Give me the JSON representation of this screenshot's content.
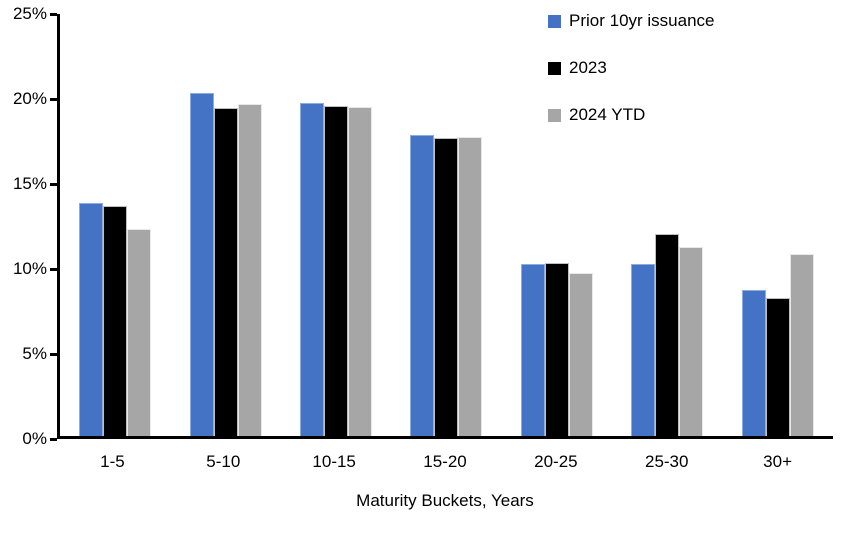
{
  "chart_data": {
    "type": "bar",
    "title": "",
    "categories": [
      "1-5",
      "5-10",
      "10-15",
      "15-20",
      "20-25",
      "25-30",
      "30+"
    ],
    "series": [
      {
        "name": "Prior 10yr issuance",
        "color": "#4472C4",
        "border_color": "#8FAADC",
        "values": [
          13.7,
          20.2,
          19.6,
          17.7,
          10.1,
          10.1,
          8.6
        ]
      },
      {
        "name": "2023",
        "color": "#000000",
        "border_color": "#BFBFBF",
        "values": [
          13.5,
          19.3,
          19.4,
          17.5,
          10.2,
          11.9,
          8.1
        ]
      },
      {
        "name": "2024 YTD",
        "color": "#A6A6A6",
        "border_color": "#E8E8E8",
        "values": [
          12.2,
          19.5,
          19.35,
          17.6,
          9.6,
          11.1,
          10.7
        ]
      }
    ],
    "xlabel": "Maturity Buckets, Years",
    "ylabel": "",
    "ylim": [
      0,
      25
    ],
    "ytick_step": 5,
    "ytick_labels": [
      "0%",
      "5%",
      "10%",
      "15%",
      "20%",
      "25%"
    ],
    "grid": false,
    "legend_position": "top-right",
    "background": "#FFFFFF",
    "axis_color": "#000000",
    "text_color": "#000000"
  }
}
